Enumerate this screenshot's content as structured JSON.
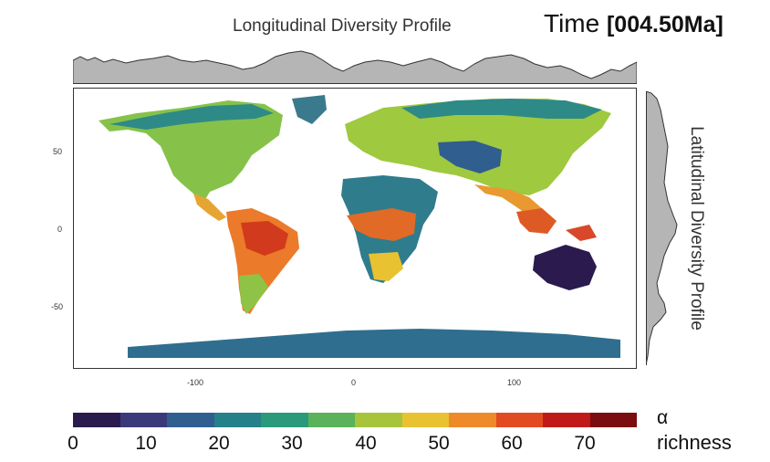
{
  "header": {
    "longitudinal_title": "Longitudinal Diversity Profile",
    "time_label": "Time",
    "time_value": "[004.50Ma]"
  },
  "side": {
    "latitudinal_title": "Latitudinal Diversity Profile"
  },
  "map": {
    "x_ticks": [
      "-100",
      "0",
      "100"
    ],
    "y_ticks": [
      "50",
      "0",
      "-50"
    ]
  },
  "legend": {
    "symbol": "α",
    "label": "richness",
    "ticks": [
      "0",
      "10",
      "20",
      "30",
      "40",
      "50",
      "60",
      "70"
    ],
    "colors": [
      "#2a1a4e",
      "#3a3a7a",
      "#2f5e8f",
      "#25808a",
      "#2a9a7a",
      "#5ab35a",
      "#a8c43a",
      "#e8c230",
      "#ee8a2a",
      "#e24a22",
      "#c01a18",
      "#7a0d0f"
    ]
  }
}
